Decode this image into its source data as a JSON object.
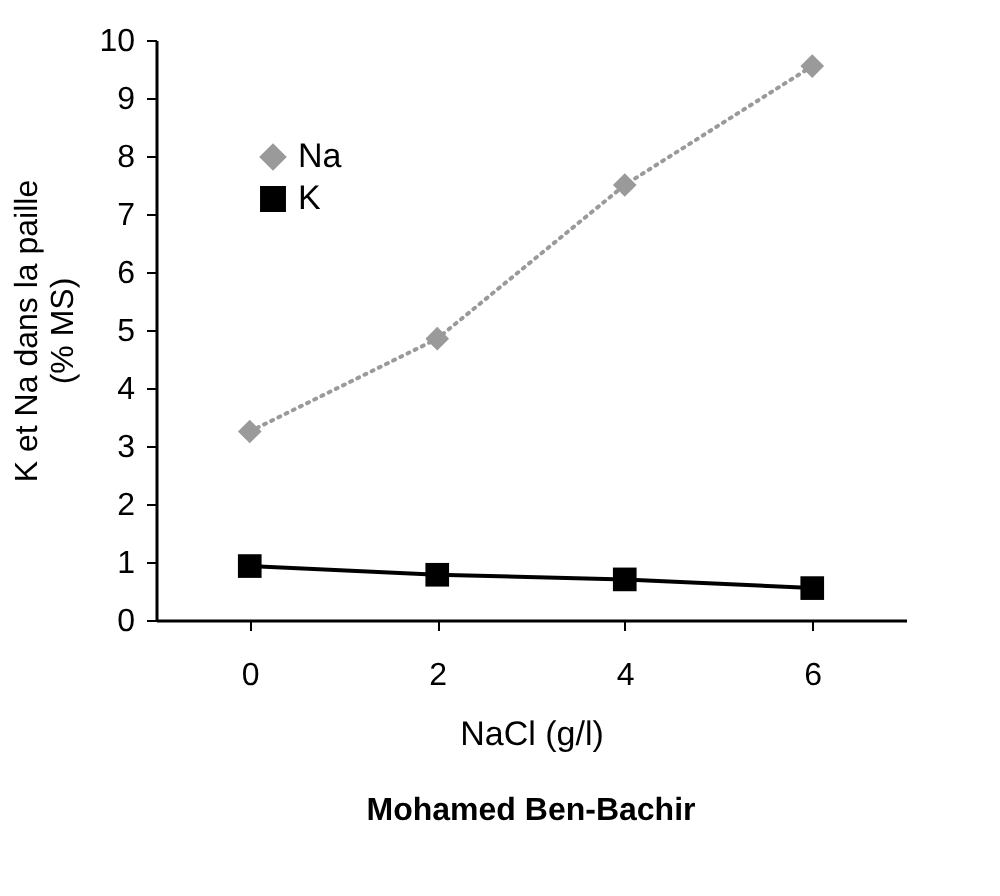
{
  "chart_data": {
    "type": "line",
    "categories": [
      "0",
      "2",
      "4",
      "6"
    ],
    "series": [
      {
        "name": "Na",
        "color": "#9a9a9a",
        "values": [
          3.25,
          4.85,
          7.5,
          9.55
        ],
        "marker": "diamond",
        "line_style": "dotted"
      },
      {
        "name": "K",
        "color": "#000000",
        "values": [
          0.93,
          0.78,
          0.7,
          0.55
        ],
        "marker": "square",
        "line_style": "solid"
      }
    ],
    "xlabel": "NaCl (g/l)",
    "ylabel": "K et Na dans la paille\n(% MS)",
    "ylim": [
      0,
      10
    ],
    "yticks": [
      0,
      1,
      2,
      3,
      4,
      5,
      6,
      7,
      8,
      9,
      10
    ],
    "grid": false,
    "legend": "top left",
    "annotations": [
      "Mohamed Ben-Bachir"
    ]
  }
}
